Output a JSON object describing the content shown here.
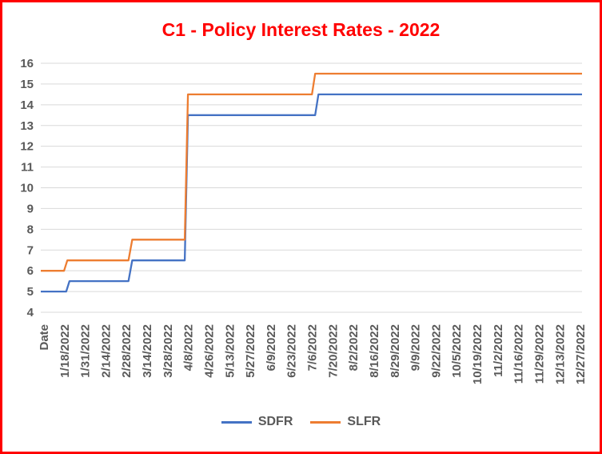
{
  "window": {
    "background": "#FFFFFF",
    "frame_border_color": "#FF0000"
  },
  "chart_data": {
    "type": "line",
    "title": "C1 - Policy Interest Rates - 2022",
    "title_color": "#FF0000",
    "grid": "horizontal gridlines on",
    "gridline_color": "#D9D9D9",
    "axis_text_color": "#595959",
    "legend_position": "bottom",
    "x_axis": {
      "label_rotation_deg": -90,
      "tick_labels": [
        "Date",
        "1/18/2022",
        "1/31/2022",
        "2/14/2022",
        "2/28/2022",
        "3/14/2022",
        "3/28/2022",
        "4/8/2022",
        "4/26/2022",
        "5/13/2022",
        "5/27/2022",
        "6/9/2022",
        "6/23/2022",
        "7/6/2022",
        "7/20/2022",
        "8/2/2022",
        "8/16/2022",
        "8/29/2022",
        "9/9/2022",
        "9/22/2022",
        "10/5/2022",
        "10/19/2022",
        "11/2/2022",
        "11/16/2022",
        "11/29/2022",
        "12/13/2022",
        "12/27/2022"
      ]
    },
    "y_axis": {
      "min": 4,
      "max": 16,
      "step": 1,
      "tick_labels": [
        16,
        15,
        14,
        13,
        12,
        11,
        10,
        9,
        8,
        7,
        6,
        5,
        4
      ]
    },
    "series": [
      {
        "name": "SDFR",
        "color": "#4472C4",
        "points": [
          [
            0,
            5.0
          ],
          [
            0.047,
            5.0
          ],
          [
            0.053,
            5.5
          ],
          [
            0.162,
            5.5
          ],
          [
            0.169,
            6.5
          ],
          [
            0.266,
            6.5
          ],
          [
            0.272,
            13.5
          ],
          [
            0.507,
            13.5
          ],
          [
            0.513,
            14.5
          ],
          [
            1,
            14.5
          ]
        ]
      },
      {
        "name": "SLFR",
        "color": "#ED7D31",
        "points": [
          [
            0,
            6.0
          ],
          [
            0.043,
            6.0
          ],
          [
            0.049,
            6.5
          ],
          [
            0.162,
            6.5
          ],
          [
            0.169,
            7.5
          ],
          [
            0.266,
            7.5
          ],
          [
            0.272,
            14.5
          ],
          [
            0.501,
            14.5
          ],
          [
            0.507,
            15.5
          ],
          [
            1,
            15.5
          ]
        ]
      }
    ],
    "rate_steps": [
      {
        "period": "start of 2022",
        "SDFR": 5.0,
        "SLFR": 6.0
      },
      {
        "period": "from ~1/20/2022",
        "SDFR": 5.5,
        "SLFR": 6.5
      },
      {
        "period": "from ~3/4/2022",
        "SDFR": 6.5,
        "SLFR": 7.5
      },
      {
        "period": "from ~4/8/2022",
        "SDFR": 13.5,
        "SLFR": 14.5
      },
      {
        "period": "from ~7/7/2022 to year-end",
        "SDFR": 14.5,
        "SLFR": 15.5
      }
    ]
  }
}
